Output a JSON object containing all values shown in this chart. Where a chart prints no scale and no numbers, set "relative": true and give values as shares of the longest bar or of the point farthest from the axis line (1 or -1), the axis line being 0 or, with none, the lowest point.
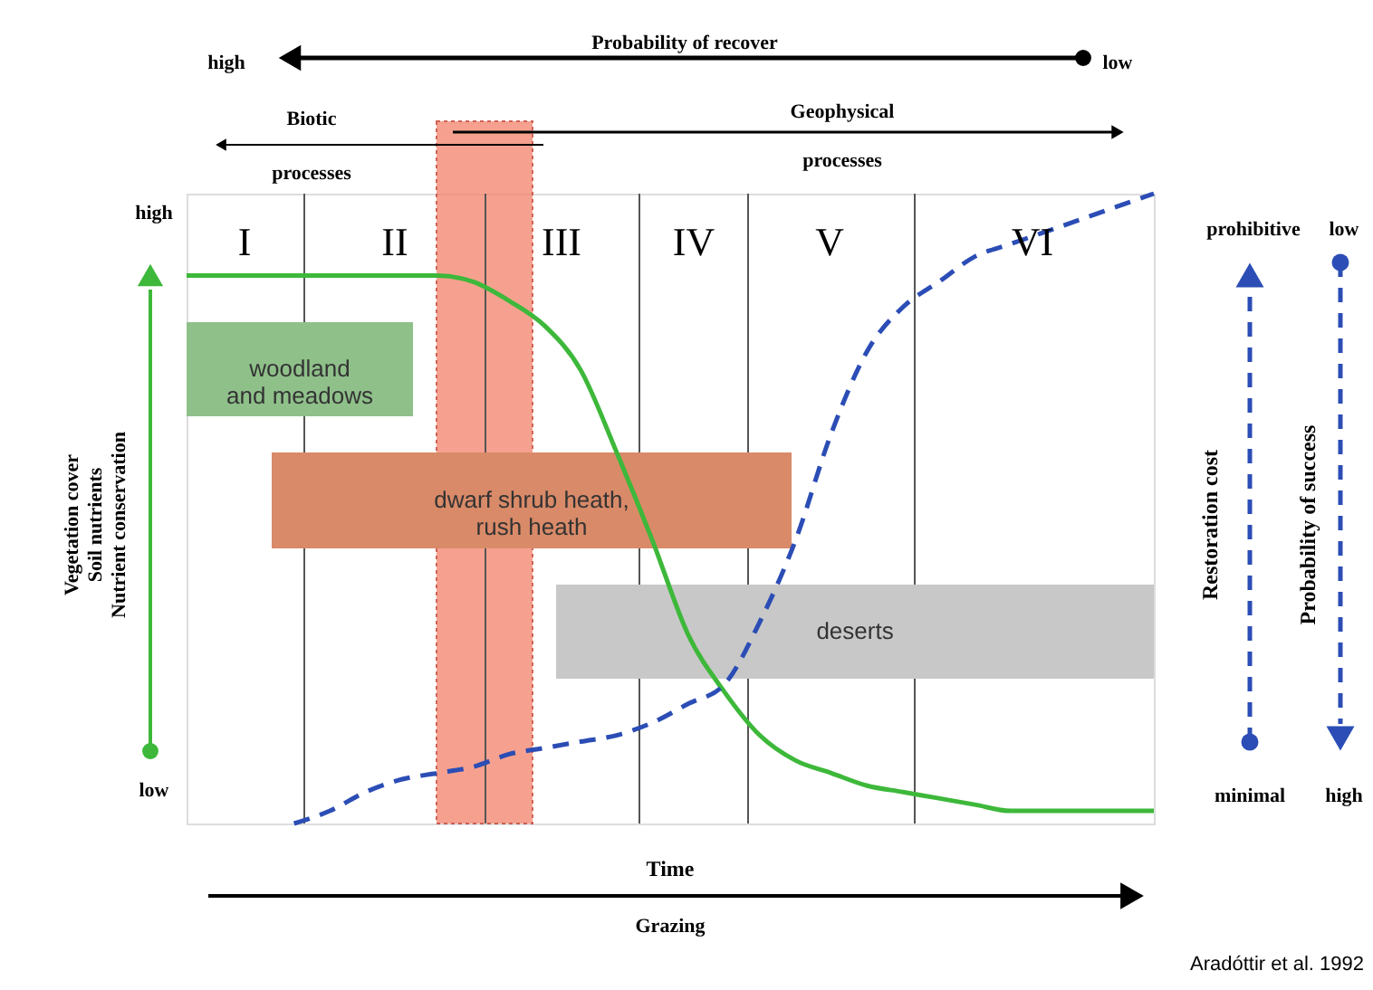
{
  "chart_data": {
    "type": "line",
    "relative": true,
    "categories": [
      null,
      null,
      null,
      null,
      null,
      null,
      null,
      null,
      null,
      null,
      null,
      null,
      null,
      null,
      null,
      null,
      null,
      null,
      null,
      null,
      null,
      null,
      null,
      null,
      null,
      null,
      null,
      null
    ],
    "series": [
      {
        "color": "#3db83a",
        "line_style": "solid",
        "values": [
          0.87,
          0.87,
          0.87,
          0.87,
          0.87,
          0.87,
          0.87,
          0.87,
          0.86,
          0.83,
          0.79,
          0.72,
          0.59,
          0.45,
          0.3,
          0.21,
          0.14,
          0.1,
          0.08,
          0.06,
          0.05,
          0.04,
          0.03,
          0.02,
          0.02,
          0.02,
          0.02,
          0.02
        ]
      },
      {
        "color": "#2b4db5",
        "line_style": "dashed",
        "values": [
          null,
          null,
          null,
          0,
          0.02,
          0.05,
          0.07,
          0.08,
          0.09,
          0.11,
          0.12,
          0.13,
          0.14,
          0.16,
          0.19,
          0.22,
          0.32,
          0.45,
          0.62,
          0.75,
          0.82,
          0.86,
          0.9,
          0.92,
          0.94,
          0.96,
          0.98,
          1
        ]
      }
    ],
    "xlabel": "Time",
    "ylabel": "Vegetation cover\nSoil nutrients\nNutrient conservation",
    "annotations": [
      "Probability of recover",
      "high",
      "low",
      "Biotic",
      "processes",
      "Geophysical",
      "processes",
      "I",
      "II",
      "III",
      "IV",
      "V",
      "VI",
      "woodland\nand meadows",
      "dwarf shrub heath,\nrush heath",
      "deserts",
      "Grazing",
      "Aradóttir et al. 1992",
      "high",
      "low",
      "prohibitive",
      "minimal",
      "Restoration cost",
      "low",
      "high",
      "Probability of success"
    ]
  }
}
